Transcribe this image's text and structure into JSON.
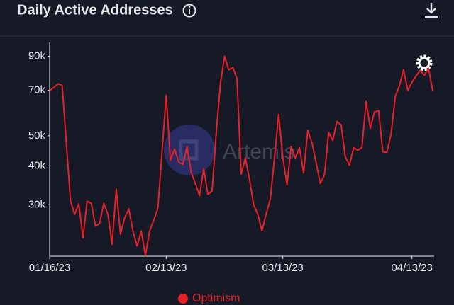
{
  "chart_data": {
    "type": "line",
    "title": "Daily Active Addresses",
    "watermark": "Artemis",
    "x": [
      "01/16/23",
      "01/17/23",
      "01/18/23",
      "01/19/23",
      "01/20/23",
      "01/21/23",
      "01/22/23",
      "01/23/23",
      "01/24/23",
      "01/25/23",
      "01/26/23",
      "01/27/23",
      "01/28/23",
      "01/29/23",
      "01/30/23",
      "01/31/23",
      "02/01/23",
      "02/02/23",
      "02/03/23",
      "02/04/23",
      "02/05/23",
      "02/06/23",
      "02/07/23",
      "02/08/23",
      "02/09/23",
      "02/10/23",
      "02/11/23",
      "02/12/23",
      "02/13/23",
      "02/14/23",
      "02/15/23",
      "02/16/23",
      "02/17/23",
      "02/18/23",
      "02/19/23",
      "02/20/23",
      "02/21/23",
      "02/22/23",
      "02/23/23",
      "02/24/23",
      "02/25/23",
      "02/26/23",
      "02/27/23",
      "02/28/23",
      "03/01/23",
      "03/02/23",
      "03/03/23",
      "03/04/23",
      "03/05/23",
      "03/06/23",
      "03/07/23",
      "03/08/23",
      "03/09/23",
      "03/10/23",
      "03/11/23",
      "03/12/23",
      "03/13/23",
      "03/14/23",
      "03/15/23",
      "03/16/23",
      "03/17/23",
      "03/18/23",
      "03/19/23",
      "03/20/23",
      "03/21/23",
      "03/22/23",
      "03/23/23",
      "03/24/23",
      "03/25/23",
      "03/26/23",
      "03/27/23",
      "03/28/23",
      "03/29/23",
      "03/30/23",
      "03/31/23",
      "04/01/23",
      "04/02/23",
      "04/03/23",
      "04/04/23",
      "04/05/23",
      "04/06/23",
      "04/07/23",
      "04/08/23",
      "04/09/23",
      "04/10/23",
      "04/11/23",
      "04/12/23",
      "04/13/23",
      "04/14/23",
      "04/15/23",
      "04/16/23",
      "04/17/23",
      "04/18/23"
    ],
    "series": [
      {
        "name": "Optimism",
        "color": "#e8202a",
        "values": [
          69700,
          71500,
          73400,
          72600,
          47500,
          31000,
          27900,
          30200,
          23500,
          30800,
          30300,
          25600,
          26100,
          30300,
          27900,
          22400,
          33700,
          24100,
          27200,
          29100,
          24700,
          22100,
          24700,
          20600,
          24700,
          26700,
          29300,
          44600,
          67500,
          41700,
          45300,
          41100,
          40400,
          46100,
          38000,
          35100,
          32100,
          39200,
          32400,
          33100,
          51000,
          73400,
          90000,
          81500,
          82800,
          76200,
          37600,
          42400,
          36200,
          30000,
          27900,
          24700,
          28000,
          31300,
          42600,
          58600,
          42600,
          34700,
          46100,
          42400,
          45800,
          38000,
          52000,
          47500,
          40900,
          35100,
          37400,
          51200,
          48300,
          55600,
          54200,
          42800,
          40200,
          45800,
          44900,
          45800,
          64400,
          52800,
          59600,
          60200,
          44400,
          44200,
          50600,
          66800,
          72300,
          81500,
          70000,
          74200,
          77800,
          81100,
          78300,
          82400,
          69700
        ]
      }
    ],
    "xticks": [
      "01/16/23",
      "02/13/23",
      "03/13/23",
      "04/13/23"
    ],
    "ylim": [
      20500,
      104000
    ],
    "log_y": true,
    "yticks": [
      {
        "value": 30000,
        "label": "30k"
      },
      {
        "value": 40000,
        "label": "40k"
      },
      {
        "value": 50000,
        "label": "50k"
      },
      {
        "value": 70000,
        "label": "70k"
      },
      {
        "value": 90000,
        "label": "90k"
      }
    ]
  }
}
